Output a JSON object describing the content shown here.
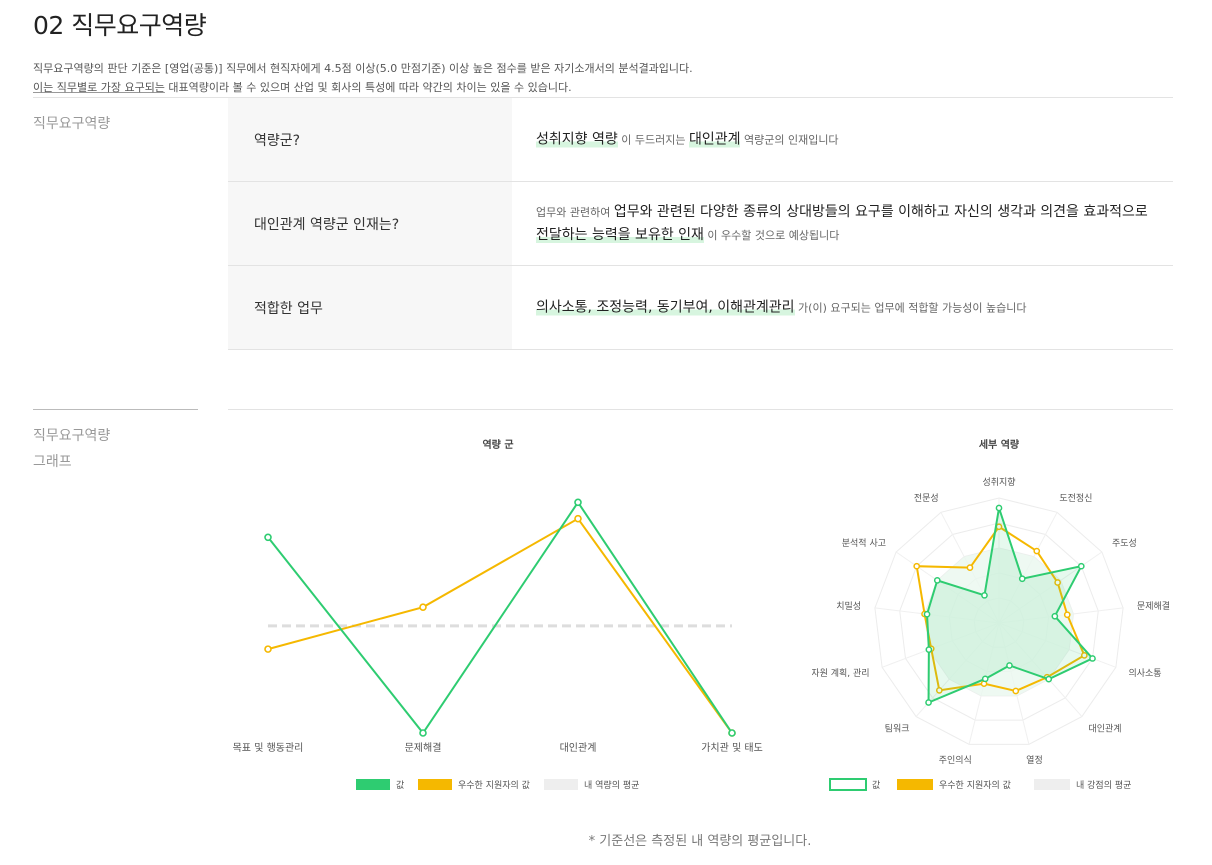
{
  "page": {
    "title": "02 직무요구역량",
    "intro_line1": "직무요구역량의 판단 기준은 [영업(공통)] 직무에서 현직자에게 4.5점 이상(5.0 만점기준) 이상 높은 점수를 받은 자기소개서의 분석결과입니다.",
    "intro_line2_underlined": "이는 직무별로 가장 요구되는",
    "intro_line2_rest": " 대표역량이라 볼 수 있으며 산업 및 회사의 특성에 따라 약간의 차이는 있을 수 있습니다.",
    "section1_label": "직무요구역량",
    "section2_label_line1": "직무요구역량",
    "section2_label_line2": "그래프",
    "footnote": "* 기준선은 측정된 내 역량의 평균입니다."
  },
  "qa": [
    {
      "question": "역량군?",
      "answer": [
        {
          "t": "성취지향 역량",
          "s": "hl"
        },
        {
          "t": " 이 두드러지는 ",
          "s": "n"
        },
        {
          "t": "대인관계",
          "s": "hl"
        },
        {
          "t": " 역량군의 인재입니다",
          "s": "n"
        }
      ]
    },
    {
      "question": "대인관계 역량군 인재는?",
      "answer": [
        {
          "t": "업무와 관련하여 ",
          "s": "n"
        },
        {
          "t": "업무와 관련된 다양한 종류의 상대방들의 요구를 이해하고 자신의 생각과 의견을 효과적으로 ",
          "s": "b"
        },
        {
          "t": "전달하는 능력을 보유한 인재",
          "s": "hl"
        },
        {
          "t": " 이 우수할 것으로 예상됩니다",
          "s": "n"
        }
      ]
    },
    {
      "question": "적합한 업무",
      "answer": [
        {
          "t": "의사소통, 조정능력, 동기부여, 이해관계관리",
          "s": "hl"
        },
        {
          "t": " 가(이) 요구되는 업무에 적합할 가능성이 높습니다",
          "s": "n"
        }
      ]
    }
  ],
  "colors": {
    "mine": "#2ecc71",
    "excellent": "#f5b800",
    "avg": "#d9d9d9"
  },
  "chart_data": [
    {
      "type": "line",
      "title": "역량 군",
      "categories": [
        "목표 및 행동관리",
        "문제해결",
        "대인관계",
        "가치관 및 태도"
      ],
      "ylim": [
        0,
        100
      ],
      "series": [
        {
          "name": "값",
          "values": [
            84,
            0,
            99,
            0
          ]
        },
        {
          "name": "우수한 지원자의 값",
          "values": [
            36,
            54,
            92,
            0
          ]
        },
        {
          "name": "내 역량의 평균",
          "values": [
            46,
            46,
            46,
            46
          ]
        }
      ],
      "legend": [
        "값",
        "우수한 지원자의 값",
        "내 역량의 평균"
      ]
    },
    {
      "type": "radar",
      "title": "세부 역량",
      "categories": [
        "성취지향",
        "도전정신",
        "주도성",
        "문제해결",
        "의사소통",
        "대인관계",
        "열정",
        "주인의식",
        "팀워크",
        "자원 계획, 관리",
        "치밀성",
        "분석적 사고",
        "전문성"
      ],
      "rmax": 100,
      "series": [
        {
          "name": "값",
          "values": [
            92,
            40,
            80,
            45,
            80,
            60,
            35,
            46,
            85,
            60,
            58,
            60,
            25
          ]
        },
        {
          "name": "우수한 지원자의 값",
          "values": [
            77,
            65,
            57,
            55,
            73,
            58,
            56,
            50,
            72,
            58,
            60,
            80,
            50
          ]
        },
        {
          "name": "내 강점의 평균",
          "values": [
            60,
            60,
            60,
            60,
            60,
            60,
            60,
            60,
            60,
            60,
            60,
            60,
            60
          ]
        }
      ],
      "legend": [
        "값",
        "우수한 지원자의 값",
        "내 강점의 평균"
      ]
    }
  ]
}
